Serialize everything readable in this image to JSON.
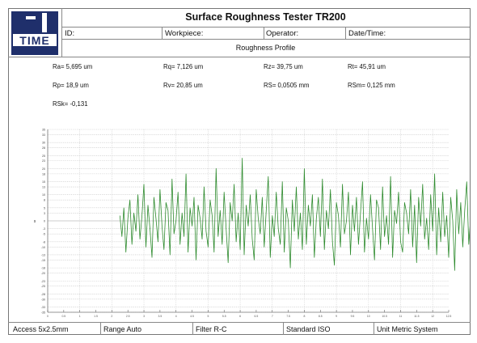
{
  "header": {
    "logo_text": "TIME",
    "title": "Surface Roughness Tester TR200",
    "fields": [
      {
        "label": "ID:"
      },
      {
        "label": "Workpiece:"
      },
      {
        "label": "Operator:"
      },
      {
        "label": "Date/Time:"
      }
    ],
    "subtitle": "Roughness Profile"
  },
  "parameters": [
    {
      "text": "Ra= 5,695 um"
    },
    {
      "text": "Rq= 7,126 um"
    },
    {
      "text": "Rz= 39,75 um"
    },
    {
      "text": "Rt= 45,91 um"
    },
    {
      "text": "Rp= 18,9 um"
    },
    {
      "text": "Rv= 20,85 um"
    },
    {
      "text": "RS= 0,0505 mm"
    },
    {
      "text": "RSm= 0,125 mm"
    },
    {
      "text": "RSk= -0,131"
    }
  ],
  "chart_data": {
    "type": "line",
    "ylabel": "s",
    "xlabel": "",
    "ylim": [
      -35,
      35
    ],
    "xlim": [
      0,
      12.5
    ],
    "yticks": [
      35,
      33,
      30,
      28,
      25,
      23,
      20,
      18,
      15,
      13,
      10,
      8,
      5,
      3,
      0,
      -3,
      -5,
      -8,
      -10,
      -13,
      -15,
      -18,
      -20,
      -23,
      -25,
      -28,
      -30,
      -33,
      -35
    ],
    "xticks": [
      0,
      0.5,
      1,
      1.5,
      2,
      2.5,
      3,
      3.5,
      4,
      4.5,
      5,
      5.5,
      6,
      6.5,
      7,
      7.5,
      8,
      8.5,
      9,
      9.5,
      10,
      10.5,
      11,
      11.5,
      12,
      12.5
    ],
    "series": [
      {
        "color": "#2e8b2e",
        "x_start": 2.25,
        "x_step": 0.0625,
        "values": [
          2,
          -6,
          5,
          -12,
          1,
          8,
          -9,
          3,
          -4,
          10,
          -7,
          2,
          14,
          -10,
          6,
          -3,
          -14,
          9,
          1,
          -8,
          12,
          -2,
          -11,
          7,
          4,
          -13,
          16,
          -5,
          0,
          11,
          -9,
          3,
          -6,
          18,
          -12,
          5,
          -2,
          9,
          -15,
          6,
          1,
          -7,
          13,
          -4,
          -10,
          8,
          2,
          -12,
          20,
          -6,
          4,
          -9,
          11,
          -3,
          -16,
          7,
          0,
          14,
          -8,
          3,
          -11,
          24,
          -13,
          6,
          -2,
          10,
          -7,
          -15,
          12,
          1,
          -5,
          9,
          -10,
          4,
          17,
          -14,
          2,
          -6,
          11,
          -3,
          -9,
          15,
          -12,
          5,
          0,
          -18,
          8,
          -4,
          13,
          -7,
          3,
          -11,
          20,
          -9,
          6,
          -2,
          10,
          -14,
          1,
          9,
          -6,
          16,
          -11,
          4,
          -3,
          12,
          -8,
          -17,
          7,
          2,
          -10,
          14,
          -5,
          0,
          11,
          -13,
          6,
          -4,
          9,
          -9,
          3,
          15,
          -12,
          1,
          -7,
          10,
          -3,
          -15,
          8,
          5,
          -11,
          13,
          -6,
          2,
          -9,
          17,
          -14,
          4,
          -1,
          11,
          -8,
          -12,
          7,
          3,
          -5,
          12,
          -10,
          6,
          -16,
          9,
          -2,
          14,
          -7,
          1,
          -11,
          10,
          -4,
          18,
          -13,
          5,
          -8,
          11,
          -6,
          2,
          -14,
          9,
          0,
          -19,
          12,
          -5,
          7,
          -10,
          4,
          15,
          -9,
          2,
          -12,
          8,
          -3,
          13,
          -11,
          6,
          -7,
          10,
          -2,
          -15,
          9,
          3,
          -8,
          14,
          -6,
          1,
          -10,
          12,
          -4,
          7,
          -13,
          5,
          -1,
          11,
          -9,
          3,
          -6,
          9,
          -11,
          4,
          13,
          -7,
          2,
          -10,
          8,
          -3,
          6
        ]
      }
    ]
  },
  "footer": [
    {
      "text": "Access 5x2.5mm"
    },
    {
      "text": "Range Auto"
    },
    {
      "text": "Filter R-C"
    },
    {
      "text": "Standard ISO"
    },
    {
      "text": "Unit Metric System"
    }
  ]
}
